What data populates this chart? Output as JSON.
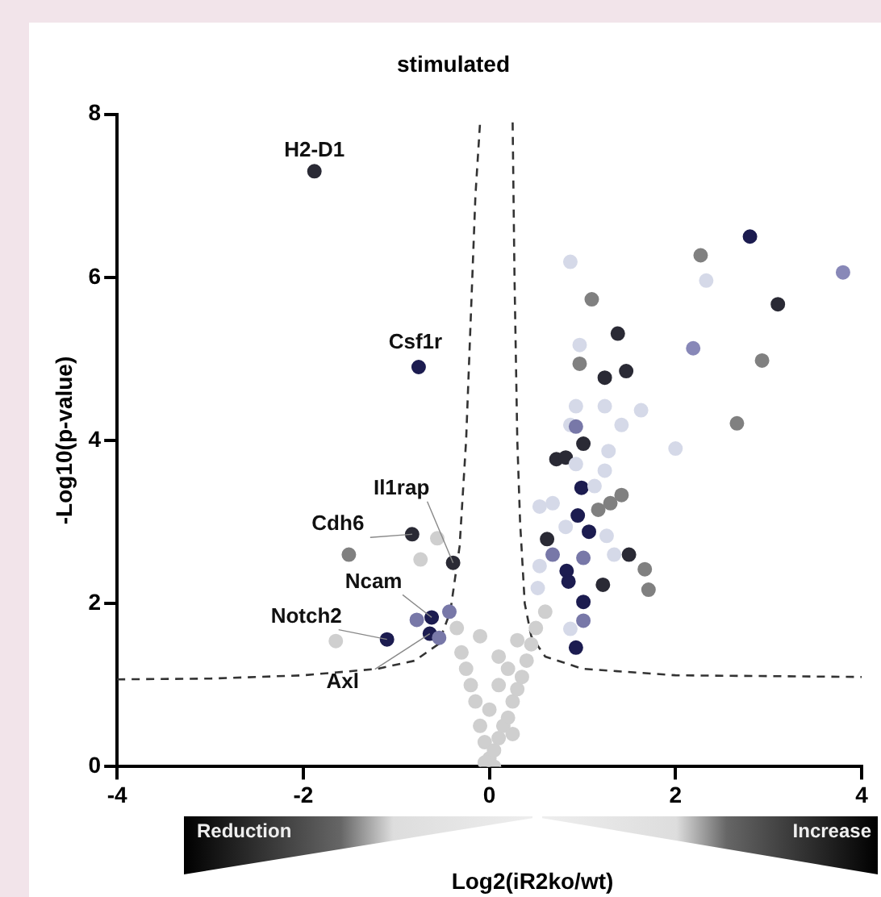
{
  "chart_data": {
    "type": "scatter",
    "title": "stimulated",
    "xlabel": "Log2(iR2ko/wt)",
    "ylabel": "-Log10(p-value)",
    "xlim": [
      -4,
      4
    ],
    "xticks": [
      -4,
      -2,
      0,
      2,
      4
    ],
    "ylim": [
      0,
      8
    ],
    "yticks": [
      0,
      2,
      4,
      6,
      8
    ],
    "grid": false,
    "legend": false,
    "marker": "circle",
    "series": [
      {
        "x": [
          -1.88,
          -0.76,
          -0.83,
          -1.51,
          -0.56,
          -0.74,
          -0.39,
          -0.62,
          -0.78,
          -0.64,
          -0.54,
          -0.43,
          -1.1,
          -1.65,
          2.8,
          2.27,
          0.87,
          2.33,
          3.8,
          1.1,
          3.1,
          1.38,
          0.97,
          2.19,
          0.97,
          2.93,
          1.24,
          1.47,
          2.66,
          2.0,
          0.93,
          1.24,
          1.63,
          0.87,
          0.93,
          1.42,
          1.01,
          0.72,
          0.82,
          1.28,
          0.93,
          1.24,
          0.99,
          1.13,
          1.42,
          1.3,
          1.17,
          0.54,
          0.68,
          0.95,
          1.07,
          0.82,
          1.26,
          0.62,
          0.68,
          1.01,
          1.34,
          1.5,
          0.83,
          0.85,
          1.22,
          1.67,
          1.71,
          1.01,
          1.01,
          0.93,
          0.54,
          0.52,
          0.87,
          0.0,
          0.05,
          -0.05,
          0.1,
          0.15,
          -0.1,
          0.2,
          0.0,
          0.25,
          -0.15,
          0.3,
          0.1,
          -0.2,
          0.35,
          0.2,
          -0.25,
          0.4,
          0.1,
          -0.3,
          0.45,
          0.3,
          -0.1,
          0.5,
          -0.35,
          0.6,
          0.25,
          -0.05,
          0.05
        ],
        "values": [
          7.3,
          4.9,
          2.85,
          2.6,
          2.8,
          2.54,
          2.5,
          1.83,
          1.8,
          1.63,
          1.58,
          1.9,
          1.56,
          1.54,
          6.5,
          6.27,
          6.19,
          5.96,
          6.06,
          5.73,
          5.67,
          5.31,
          5.17,
          5.13,
          4.94,
          4.98,
          4.77,
          4.85,
          4.21,
          3.9,
          4.42,
          4.42,
          4.37,
          4.19,
          4.17,
          4.19,
          3.96,
          3.77,
          3.79,
          3.87,
          3.71,
          3.63,
          3.42,
          3.44,
          3.33,
          3.23,
          3.15,
          3.19,
          3.23,
          3.08,
          2.88,
          2.94,
          2.83,
          2.79,
          2.6,
          2.56,
          2.6,
          2.6,
          2.4,
          2.27,
          2.23,
          2.42,
          2.17,
          2.02,
          1.79,
          1.46,
          2.46,
          2.19,
          1.69,
          0.1,
          0.2,
          0.3,
          0.35,
          0.5,
          0.5,
          0.6,
          0.7,
          0.8,
          0.8,
          0.95,
          1.0,
          1.0,
          1.1,
          1.2,
          1.2,
          1.3,
          1.35,
          1.4,
          1.5,
          1.55,
          1.6,
          1.7,
          1.7,
          1.9,
          0.4,
          0.05,
          0.0
        ],
        "colors": [
          "#2a2a35",
          "#1c1c50",
          "#2a2a35",
          "#808080",
          "#cfcfcf",
          "#cfcfcf",
          "#2a2a35",
          "#1c1c50",
          "#7878a8",
          "#1c1c50",
          "#7878a8",
          "#7878a8",
          "#1c1c50",
          "#cfcfcf",
          "#1c1c50",
          "#808080",
          "#d5d9e8",
          "#d5d9e8",
          "#8888b8",
          "#808080",
          "#2a2a35",
          "#2a2a35",
          "#d5d9e8",
          "#8888b8",
          "#808080",
          "#808080",
          "#2a2a35",
          "#2a2a35",
          "#808080",
          "#d5d9e8",
          "#d5d9e8",
          "#d5d9e8",
          "#d5d9e8",
          "#d5d9e8",
          "#7878a8",
          "#d5d9e8",
          "#2a2a35",
          "#2a2a35",
          "#2a2a35",
          "#d5d9e8",
          "#d5d9e8",
          "#d5d9e8",
          "#1c1c50",
          "#d5d9e8",
          "#808080",
          "#808080",
          "#808080",
          "#d5d9e8",
          "#d5d9e8",
          "#1c1c50",
          "#1c1c50",
          "#d5d9e8",
          "#d5d9e8",
          "#2a2a35",
          "#7878a8",
          "#7878a8",
          "#d5d9e8",
          "#2a2a35",
          "#1c1c50",
          "#1c1c50",
          "#2a2a35",
          "#808080",
          "#808080",
          "#1c1c50",
          "#7878a8",
          "#1c1c50",
          "#d5d9e8",
          "#d5d9e8",
          "#d5d9e8",
          "#cfcfcf",
          "#cfcfcf",
          "#cfcfcf",
          "#cfcfcf",
          "#cfcfcf",
          "#cfcfcf",
          "#cfcfcf",
          "#cfcfcf",
          "#cfcfcf",
          "#cfcfcf",
          "#cfcfcf",
          "#cfcfcf",
          "#cfcfcf",
          "#cfcfcf",
          "#cfcfcf",
          "#cfcfcf",
          "#cfcfcf",
          "#cfcfcf",
          "#cfcfcf",
          "#cfcfcf",
          "#cfcfcf",
          "#cfcfcf",
          "#cfcfcf",
          "#cfcfcf",
          "#cfcfcf",
          "#cfcfcf",
          "#cfcfcf",
          "#cfcfcf"
        ]
      },
      {
        "type": "line",
        "x": [
          -4,
          -3,
          -2,
          -1.2,
          -0.8,
          -0.55,
          -0.42,
          -0.32,
          -0.25,
          -0.2,
          -0.15,
          -0.1
        ],
        "values": [
          1.07,
          1.08,
          1.12,
          1.2,
          1.3,
          1.5,
          1.9,
          2.7,
          4,
          5.5,
          7,
          7.9
        ],
        "color": "#333333",
        "line_style": "dashed",
        "marker": "none"
      },
      {
        "type": "line",
        "x": [
          0.25,
          0.27,
          0.3,
          0.33,
          0.38,
          0.45,
          0.6,
          1,
          2,
          4
        ],
        "values": [
          7.9,
          6,
          4,
          3,
          2,
          1.6,
          1.35,
          1.2,
          1.12,
          1.1
        ],
        "color": "#333333",
        "line_style": "dashed",
        "marker": "none"
      }
    ],
    "annotations": [
      {
        "text": "H2-D1",
        "x": -1.88,
        "y": 7.3
      },
      {
        "text": "Csf1r",
        "x": -0.76,
        "y": 4.9
      },
      {
        "text": "Il1rap",
        "x": -0.39,
        "y": 2.5
      },
      {
        "text": "Cdh6",
        "x": -0.83,
        "y": 2.85
      },
      {
        "text": "Ncam",
        "x": -0.62,
        "y": 1.83
      },
      {
        "text": "Notch2",
        "x": -1.1,
        "y": 1.56
      },
      {
        "text": "Axl",
        "x": -0.64,
        "y": 1.63
      },
      "Reduction",
      "Increase"
    ]
  }
}
